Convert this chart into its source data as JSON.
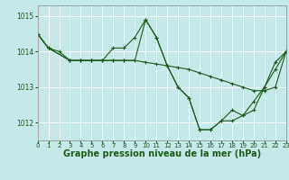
{
  "bg_color": "#c5e8e8",
  "grid_color": "#ffffff",
  "line_color": "#1a5c1a",
  "marker_color": "#1a5c1a",
  "xlabel": "Graphe pression niveau de la mer (hPa)",
  "xlabel_fontsize": 7.0,
  "ylim": [
    1011.5,
    1015.3
  ],
  "xlim": [
    0,
    23
  ],
  "yticks": [
    1012,
    1013,
    1014,
    1015
  ],
  "xticks": [
    0,
    1,
    2,
    3,
    4,
    5,
    6,
    7,
    8,
    9,
    10,
    11,
    12,
    13,
    14,
    15,
    16,
    17,
    18,
    19,
    20,
    21,
    22,
    23
  ],
  "series": [
    {
      "x": [
        0,
        1,
        2,
        3,
        4,
        5,
        6,
        7,
        8,
        9,
        10,
        11,
        12,
        13,
        14,
        15,
        16,
        17,
        18,
        19,
        20,
        21,
        22,
        23
      ],
      "y": [
        1014.5,
        1014.1,
        1014.0,
        1013.75,
        1013.75,
        1013.75,
        1013.75,
        1013.75,
        1013.75,
        1013.75,
        1013.7,
        1013.65,
        1013.6,
        1013.55,
        1013.5,
        1013.4,
        1013.3,
        1013.2,
        1013.1,
        1013.0,
        1012.9,
        1012.9,
        1013.0,
        1014.0
      ]
    },
    {
      "x": [
        0,
        1,
        3,
        4,
        5,
        6,
        7,
        8,
        9,
        10,
        11,
        12,
        13,
        14,
        15,
        16,
        17,
        18,
        19,
        20,
        21,
        22,
        23
      ],
      "y": [
        1014.5,
        1014.1,
        1013.75,
        1013.75,
        1013.75,
        1013.75,
        1014.1,
        1014.1,
        1014.4,
        1014.9,
        1014.4,
        1013.6,
        1013.0,
        1012.7,
        1011.8,
        1011.8,
        1012.05,
        1012.35,
        1012.2,
        1012.6,
        1013.0,
        1013.7,
        1014.0
      ]
    },
    {
      "x": [
        0,
        1,
        3,
        4,
        5,
        6,
        7,
        8,
        9,
        10,
        11,
        12,
        13,
        14,
        15,
        16,
        17,
        18,
        19,
        20,
        21,
        22,
        23
      ],
      "y": [
        1014.5,
        1014.1,
        1013.75,
        1013.75,
        1013.75,
        1013.75,
        1013.75,
        1013.75,
        1013.75,
        1014.9,
        1014.4,
        1013.6,
        1013.0,
        1012.7,
        1011.8,
        1011.8,
        1012.05,
        1012.05,
        1012.2,
        1012.35,
        1013.0,
        1013.5,
        1014.0
      ]
    }
  ]
}
